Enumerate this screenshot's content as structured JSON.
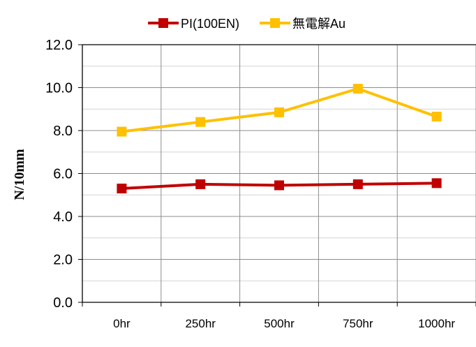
{
  "chart_data": {
    "type": "line",
    "categories": [
      "0hr",
      "250hr",
      "500hr",
      "750hr",
      "1000hr"
    ],
    "series": [
      {
        "name": "PI(100EN)",
        "color": "#c00000",
        "marker": "square",
        "values": [
          5.3,
          5.5,
          5.45,
          5.5,
          5.55
        ]
      },
      {
        "name": "無電解Au",
        "color": "#ffc000",
        "marker": "square",
        "values": [
          7.95,
          8.4,
          8.85,
          9.95,
          8.65
        ]
      }
    ],
    "ylabel": "N/10mm",
    "xlabel": "",
    "title": "",
    "ylim": [
      0,
      12
    ],
    "ytick_values": [
      0,
      2,
      4,
      6,
      8,
      10,
      12
    ],
    "ytick_labels": [
      "0.0",
      "2.0",
      "4.0",
      "6.0",
      "8.0",
      "10.0",
      "12.0"
    ],
    "minor_gridlines": true,
    "grid": true,
    "legend_position": "top"
  }
}
